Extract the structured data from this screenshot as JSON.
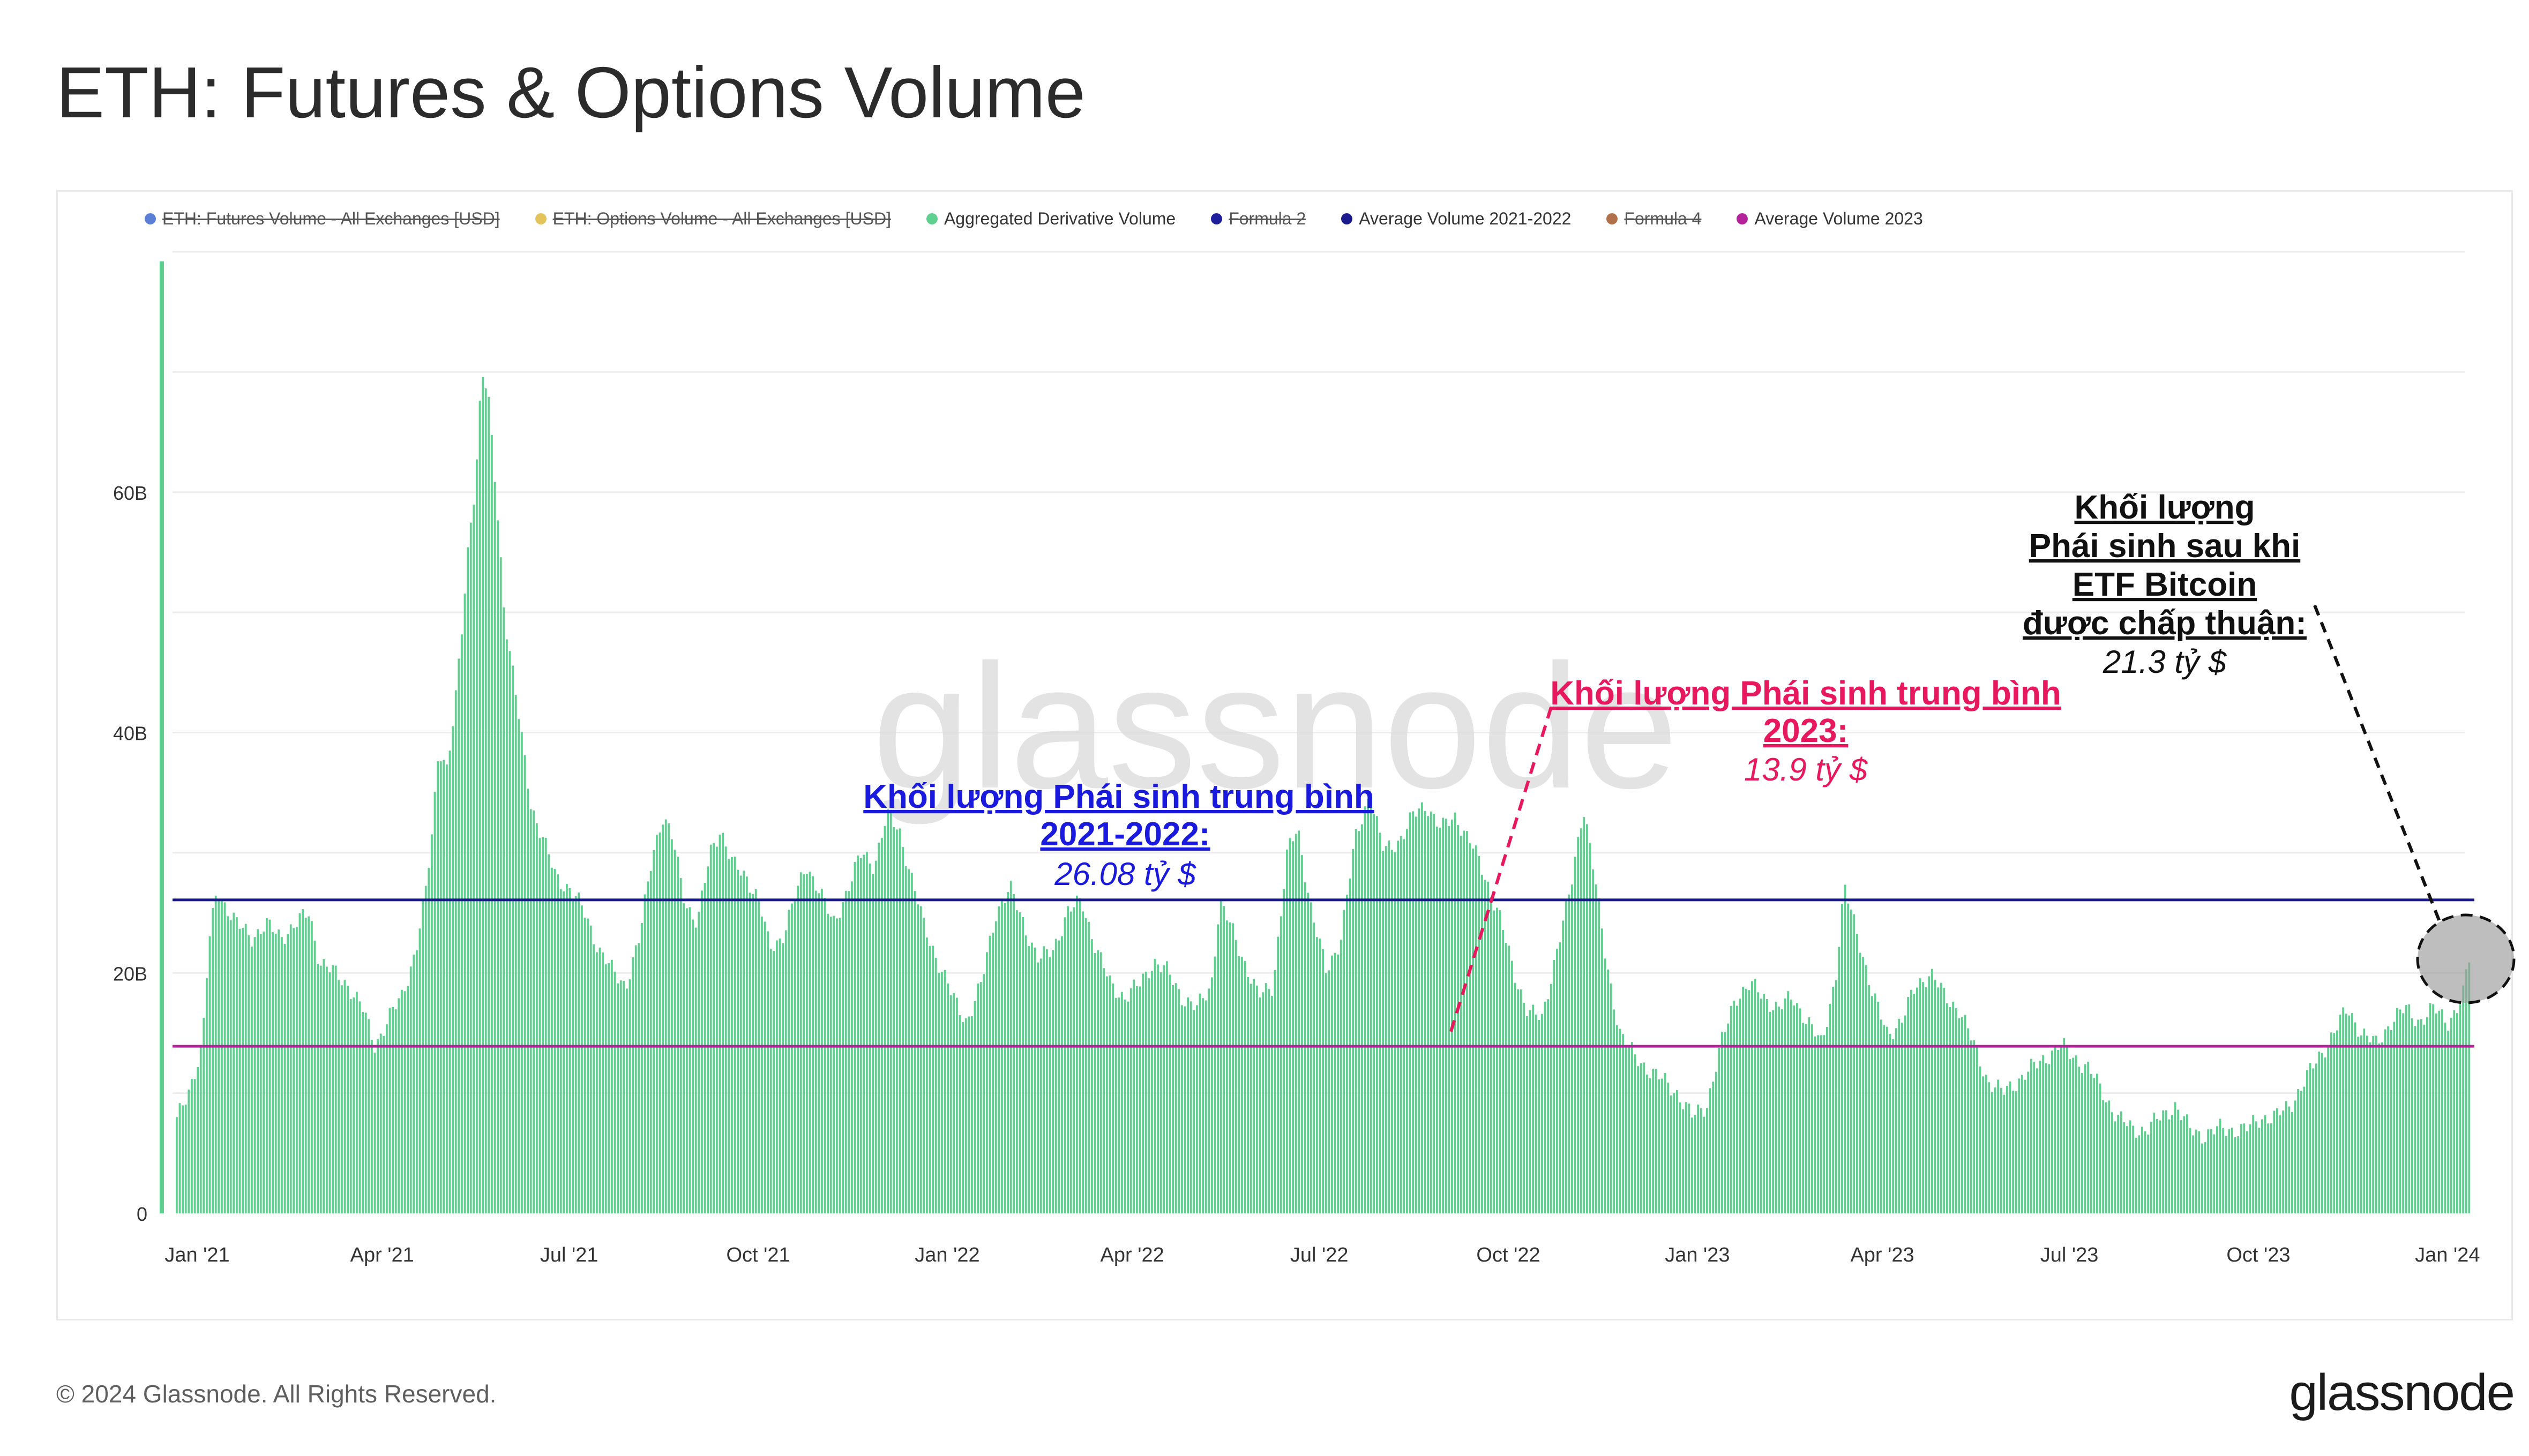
{
  "title": "ETH: Futures & Options Volume",
  "footer": "© 2024 Glassnode. All Rights Reserved.",
  "brand": "glassnode",
  "watermark": "glassnode",
  "legend": [
    {
      "label": "ETH: Futures Volume - All Exchanges [USD]",
      "color": "#5b7fd6",
      "struck": true
    },
    {
      "label": "ETH: Options Volume - All Exchanges [USD]",
      "color": "#e3c45a",
      "struck": true
    },
    {
      "label": "Aggregated Derivative Volume",
      "color": "#5fd08f",
      "struck": false
    },
    {
      "label": "Formula 2",
      "color": "#1f1f9c",
      "struck": true
    },
    {
      "label": "Average Volume 2021-2022",
      "color": "#1a1a8c",
      "struck": false
    },
    {
      "label": "Formula 4",
      "color": "#b0704a",
      "struck": true
    },
    {
      "label": "Average Volume 2023",
      "color": "#b4239a",
      "struck": false
    }
  ],
  "annotations": {
    "avg_2021_2022": {
      "heading_line1": "Khối lượng Phái sinh trung bình",
      "heading_line2": "2021-2022:",
      "value": "26.08 tỷ $",
      "color": "#1a1adf"
    },
    "avg_2023": {
      "heading_line1": "Khối lượng Phái sinh trung bình",
      "heading_line2": "2023:",
      "value": "13.9 tỷ $",
      "color": "#e8185e"
    },
    "post_etf": {
      "line1": "Khối lượng",
      "line2": "Phái sinh sau khi",
      "line3": "ETF Bitcoin",
      "line4": "được chấp thuận:",
      "value": "21.3 tỷ $",
      "color": "#111111"
    }
  },
  "chart_data": {
    "type": "bar",
    "y_unit": "USD",
    "ylim": [
      0,
      80
    ],
    "y_ticks": [
      {
        "value": 0,
        "label": "0"
      },
      {
        "value": 20,
        "label": "20B"
      },
      {
        "value": 40,
        "label": "40B"
      },
      {
        "value": 60,
        "label": "60B"
      }
    ],
    "x_range": [
      "2020-12-20",
      "2024-01-12"
    ],
    "x_ticks": [
      {
        "date": "2021-01-01",
        "label": "Jan '21"
      },
      {
        "date": "2021-04-01",
        "label": "Apr '21"
      },
      {
        "date": "2021-07-01",
        "label": "Jul '21"
      },
      {
        "date": "2021-10-01",
        "label": "Oct '21"
      },
      {
        "date": "2022-01-01",
        "label": "Jan '22"
      },
      {
        "date": "2022-04-01",
        "label": "Apr '22"
      },
      {
        "date": "2022-07-01",
        "label": "Jul '22"
      },
      {
        "date": "2022-10-01",
        "label": "Oct '22"
      },
      {
        "date": "2023-01-01",
        "label": "Jan '23"
      },
      {
        "date": "2023-04-01",
        "label": "Apr '23"
      },
      {
        "date": "2023-07-01",
        "label": "Jul '23"
      },
      {
        "date": "2023-10-01",
        "label": "Oct '23"
      },
      {
        "date": "2024-01-01",
        "label": "Jan '24"
      }
    ],
    "grid": true,
    "legend_position": "top",
    "series": [
      {
        "name": "Aggregated Derivative Volume",
        "color": "#5fd08f",
        "unit": "billion USD",
        "points": [
          [
            "2020-12-20",
            7
          ],
          [
            "2020-12-27",
            10
          ],
          [
            "2021-01-03",
            14
          ],
          [
            "2021-01-06",
            22
          ],
          [
            "2021-01-10",
            27
          ],
          [
            "2021-01-13",
            26
          ],
          [
            "2021-01-20",
            24
          ],
          [
            "2021-01-27",
            23
          ],
          [
            "2021-02-03",
            24
          ],
          [
            "2021-02-10",
            23
          ],
          [
            "2021-02-17",
            24
          ],
          [
            "2021-02-24",
            25
          ],
          [
            "2021-03-01",
            21
          ],
          [
            "2021-03-08",
            20
          ],
          [
            "2021-03-15",
            19
          ],
          [
            "2021-03-22",
            17
          ],
          [
            "2021-03-28",
            14
          ],
          [
            "2021-04-03",
            16
          ],
          [
            "2021-04-10",
            18
          ],
          [
            "2021-04-17",
            22
          ],
          [
            "2021-04-22",
            27
          ],
          [
            "2021-04-25",
            32
          ],
          [
            "2021-04-28",
            39
          ],
          [
            "2021-05-02",
            37
          ],
          [
            "2021-05-06",
            42
          ],
          [
            "2021-05-10",
            50
          ],
          [
            "2021-05-13",
            57
          ],
          [
            "2021-05-16",
            61
          ],
          [
            "2021-05-19",
            70
          ],
          [
            "2021-05-22",
            68
          ],
          [
            "2021-05-26",
            60
          ],
          [
            "2021-05-30",
            50
          ],
          [
            "2021-06-03",
            45
          ],
          [
            "2021-06-07",
            40
          ],
          [
            "2021-06-12",
            34
          ],
          [
            "2021-06-18",
            31
          ],
          [
            "2021-06-24",
            28
          ],
          [
            "2021-07-01",
            27
          ],
          [
            "2021-07-08",
            25
          ],
          [
            "2021-07-15",
            22
          ],
          [
            "2021-07-22",
            20
          ],
          [
            "2021-07-28",
            19
          ],
          [
            "2021-08-04",
            23
          ],
          [
            "2021-08-10",
            30
          ],
          [
            "2021-08-15",
            33
          ],
          [
            "2021-08-20",
            31
          ],
          [
            "2021-08-26",
            26
          ],
          [
            "2021-09-01",
            24
          ],
          [
            "2021-09-07",
            30
          ],
          [
            "2021-09-12",
            32
          ],
          [
            "2021-09-18",
            29
          ],
          [
            "2021-09-25",
            28
          ],
          [
            "2021-10-01",
            26
          ],
          [
            "2021-10-06",
            22
          ],
          [
            "2021-10-12",
            23
          ],
          [
            "2021-10-18",
            26
          ],
          [
            "2021-10-24",
            29
          ],
          [
            "2021-10-30",
            27
          ],
          [
            "2021-11-06",
            24
          ],
          [
            "2021-11-13",
            27
          ],
          [
            "2021-11-20",
            30
          ],
          [
            "2021-11-26",
            29
          ],
          [
            "2021-12-02",
            33
          ],
          [
            "2021-12-08",
            32
          ],
          [
            "2021-12-14",
            28
          ],
          [
            "2021-12-20",
            24
          ],
          [
            "2021-12-27",
            21
          ],
          [
            "2022-01-03",
            18
          ],
          [
            "2022-01-10",
            16
          ],
          [
            "2022-01-17",
            19
          ],
          [
            "2022-01-24",
            25
          ],
          [
            "2022-01-31",
            27
          ],
          [
            "2022-02-07",
            24
          ],
          [
            "2022-02-14",
            21
          ],
          [
            "2022-02-21",
            22
          ],
          [
            "2022-02-28",
            25
          ],
          [
            "2022-03-07",
            26
          ],
          [
            "2022-03-14",
            22
          ],
          [
            "2022-03-21",
            19
          ],
          [
            "2022-03-28",
            18
          ],
          [
            "2022-04-04",
            19
          ],
          [
            "2022-04-11",
            21
          ],
          [
            "2022-04-18",
            20
          ],
          [
            "2022-04-25",
            18
          ],
          [
            "2022-05-02",
            17
          ],
          [
            "2022-05-09",
            19
          ],
          [
            "2022-05-13",
            26
          ],
          [
            "2022-05-18",
            24
          ],
          [
            "2022-05-25",
            21
          ],
          [
            "2022-06-01",
            18
          ],
          [
            "2022-06-08",
            19
          ],
          [
            "2022-06-15",
            30
          ],
          [
            "2022-06-20",
            32
          ],
          [
            "2022-06-27",
            25
          ],
          [
            "2022-07-04",
            20
          ],
          [
            "2022-07-11",
            23
          ],
          [
            "2022-07-18",
            31
          ],
          [
            "2022-07-25",
            35
          ],
          [
            "2022-08-01",
            30
          ],
          [
            "2022-08-08",
            31
          ],
          [
            "2022-08-15",
            33
          ],
          [
            "2022-08-22",
            34
          ],
          [
            "2022-08-29",
            32
          ],
          [
            "2022-09-05",
            33
          ],
          [
            "2022-09-12",
            31
          ],
          [
            "2022-09-19",
            28
          ],
          [
            "2022-09-26",
            25
          ],
          [
            "2022-10-03",
            20
          ],
          [
            "2022-10-10",
            17
          ],
          [
            "2022-10-17",
            16
          ],
          [
            "2022-10-24",
            22
          ],
          [
            "2022-10-31",
            27
          ],
          [
            "2022-11-06",
            34
          ],
          [
            "2022-11-10",
            30
          ],
          [
            "2022-11-17",
            21
          ],
          [
            "2022-11-24",
            15
          ],
          [
            "2022-12-01",
            13
          ],
          [
            "2022-12-08",
            12
          ],
          [
            "2022-12-15",
            11
          ],
          [
            "2022-12-22",
            10
          ],
          [
            "2022-12-29",
            8
          ],
          [
            "2023-01-05",
            9
          ],
          [
            "2023-01-12",
            14
          ],
          [
            "2023-01-19",
            18
          ],
          [
            "2023-01-26",
            19
          ],
          [
            "2023-02-02",
            18
          ],
          [
            "2023-02-09",
            17
          ],
          [
            "2023-02-16",
            18
          ],
          [
            "2023-02-23",
            16
          ],
          [
            "2023-03-02",
            14
          ],
          [
            "2023-03-09",
            20
          ],
          [
            "2023-03-13",
            27
          ],
          [
            "2023-03-20",
            23
          ],
          [
            "2023-03-27",
            18
          ],
          [
            "2023-04-03",
            15
          ],
          [
            "2023-04-10",
            16
          ],
          [
            "2023-04-17",
            19
          ],
          [
            "2023-04-24",
            20
          ],
          [
            "2023-05-01",
            18
          ],
          [
            "2023-05-08",
            17
          ],
          [
            "2023-05-15",
            14
          ],
          [
            "2023-05-22",
            11
          ],
          [
            "2023-05-29",
            10
          ],
          [
            "2023-06-05",
            11
          ],
          [
            "2023-06-12",
            12
          ],
          [
            "2023-06-19",
            13
          ],
          [
            "2023-06-26",
            14
          ],
          [
            "2023-07-03",
            13
          ],
          [
            "2023-07-10",
            12
          ],
          [
            "2023-07-17",
            10
          ],
          [
            "2023-07-24",
            8
          ],
          [
            "2023-07-31",
            7
          ],
          [
            "2023-08-07",
            7
          ],
          [
            "2023-08-14",
            8
          ],
          [
            "2023-08-21",
            9
          ],
          [
            "2023-08-28",
            7
          ],
          [
            "2023-09-04",
            6.5
          ],
          [
            "2023-09-11",
            7
          ],
          [
            "2023-09-18",
            7
          ],
          [
            "2023-09-25",
            7
          ],
          [
            "2023-10-02",
            8
          ],
          [
            "2023-10-09",
            8
          ],
          [
            "2023-10-16",
            9
          ],
          [
            "2023-10-23",
            11
          ],
          [
            "2023-10-30",
            13
          ],
          [
            "2023-11-06",
            15
          ],
          [
            "2023-11-13",
            17
          ],
          [
            "2023-11-20",
            15
          ],
          [
            "2023-11-27",
            14
          ],
          [
            "2023-12-04",
            16
          ],
          [
            "2023-12-11",
            17
          ],
          [
            "2023-12-18",
            16
          ],
          [
            "2023-12-25",
            17
          ],
          [
            "2024-01-01",
            16
          ],
          [
            "2024-01-05",
            17
          ],
          [
            "2024-01-08",
            18
          ],
          [
            "2024-01-11",
            21.3
          ],
          [
            "2024-01-12",
            19
          ]
        ]
      },
      {
        "name": "Average Volume 2021-2022",
        "color": "#1a1a8c",
        "type": "hline",
        "value": 26.08
      },
      {
        "name": "Average Volume 2023",
        "color": "#b4239a",
        "type": "hline",
        "value": 13.9
      }
    ]
  }
}
